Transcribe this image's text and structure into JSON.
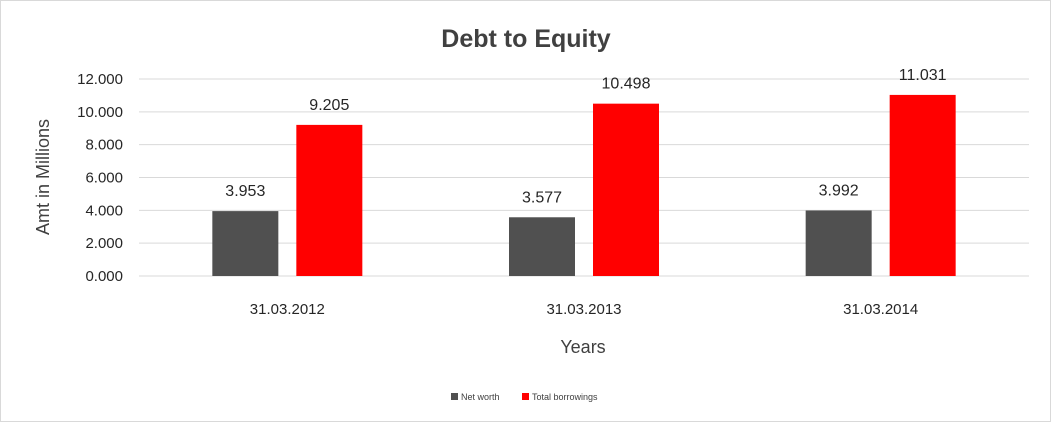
{
  "chart_data": {
    "type": "bar",
    "title": "Debt to Equity",
    "xlabel": "Years",
    "ylabel": "Amt in Millions",
    "categories": [
      "31.03.2012",
      "31.03.2013",
      "31.03.2014"
    ],
    "series": [
      {
        "name": "Net worth",
        "color": "#505050",
        "values": [
          3.953,
          3.577,
          3.992
        ],
        "labels": [
          "3.953",
          "3.577",
          "3.992"
        ]
      },
      {
        "name": "Total borrowings",
        "color": "#ff0000",
        "values": [
          9.205,
          10.498,
          11.031
        ],
        "labels": [
          "9.205",
          "10.498",
          "11.031"
        ]
      }
    ],
    "ylim": [
      0,
      12
    ],
    "yticks": [
      0,
      2,
      4,
      6,
      8,
      10,
      12
    ],
    "ytick_labels": [
      "0.000",
      "2.000",
      "4.000",
      "6.000",
      "8.000",
      "10.000",
      "12.000"
    ],
    "grid": true,
    "legend_position": "bottom"
  }
}
